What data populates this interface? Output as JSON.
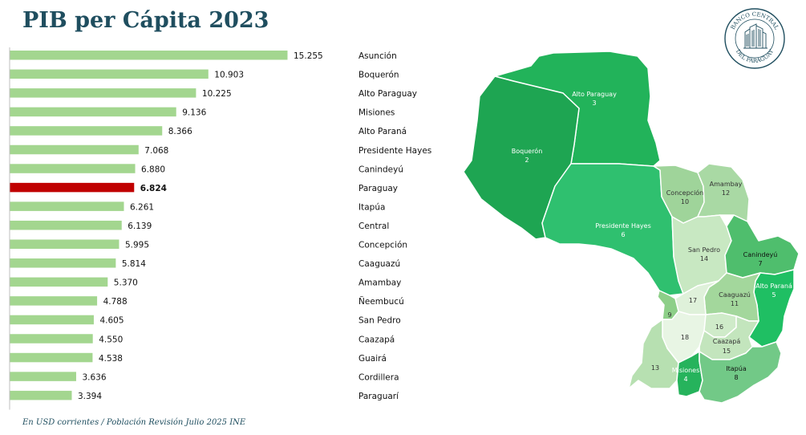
{
  "title": "PIB per Cápita 2023",
  "footnote": "En USD corrientes / Población Revisión Julio 2025 INE",
  "logo": {
    "text": "BANCO CENTRAL DEL PARAGUAY"
  },
  "colors": {
    "bar": "#a3d68f",
    "highlight": "#c00000",
    "title": "#1f4e5f",
    "axis": "#bfbfbf"
  },
  "chart_data": {
    "type": "bar",
    "orientation": "horizontal",
    "title": "PIB per Cápita 2023",
    "highlight": "Paraguay",
    "categories": [
      "Asunción",
      "Boquerón",
      "Alto Paraguay",
      "Misiones",
      "Alto Paraná",
      "Presidente Hayes",
      "Canindeyú",
      "Paraguay",
      "Itapúa",
      "Central",
      "Concepción",
      "Caaguazú",
      "Amambay",
      "Ñeembucú",
      "San Pedro",
      "Caazapá",
      "Guairá",
      "Cordillera",
      "Paraguarí"
    ],
    "values": [
      15255,
      10903,
      10225,
      9136,
      8366,
      7068,
      6880,
      6824,
      6261,
      6139,
      5995,
      5814,
      5370,
      4788,
      4605,
      4550,
      4538,
      3636,
      3394
    ],
    "labels": [
      "15.255",
      "10.903",
      "10.225",
      "9.136",
      "8.366",
      "7.068",
      "6.880",
      "6.824",
      "6.261",
      "6.139",
      "5.995",
      "5.814",
      "5.370",
      "4.788",
      "4.605",
      "4.550",
      "4.538",
      "3.636",
      "3.394"
    ]
  },
  "map": {
    "regions": [
      {
        "name": "Alto Paraguay",
        "rank": "3",
        "color": "#22b35a",
        "text_color": "#ffffff"
      },
      {
        "name": "Boquerón",
        "rank": "2",
        "color": "#1ea552",
        "text_color": "#ffffff"
      },
      {
        "name": "Presidente Hayes",
        "rank": "6",
        "color": "#2fc06f",
        "text_color": "#ffffff"
      },
      {
        "name": "Concepción",
        "rank": "10",
        "color": "#9fd49a",
        "text_color": "#333333"
      },
      {
        "name": "Amambay",
        "rank": "12",
        "color": "#a9d9a4",
        "text_color": "#333333"
      },
      {
        "name": "San Pedro",
        "rank": "14",
        "color": "#c8e8c2",
        "text_color": "#333333"
      },
      {
        "name": "Canindeyú",
        "rank": "7",
        "color": "#4fbe6d",
        "text_color": "#111111"
      },
      {
        "name": "Alto Paraná",
        "rank": "5",
        "color": "#1fbf63",
        "text_color": "#ffffff"
      },
      {
        "name": "Caaguazú",
        "rank": "11",
        "color": "#a3d79c",
        "text_color": "#333333"
      },
      {
        "name": "",
        "rank": "17",
        "color": "#dff1da",
        "text_color": "#333333"
      },
      {
        "name": "",
        "rank": "9",
        "color": "#8dcf88",
        "text_color": "#333333"
      },
      {
        "name": "",
        "rank": "18",
        "color": "#e8f5e4",
        "text_color": "#333333"
      },
      {
        "name": "",
        "rank": "16",
        "color": "#cfebc9",
        "text_color": "#333333"
      },
      {
        "name": "Caazapá",
        "rank": "15",
        "color": "#c3e5bd",
        "text_color": "#333333"
      },
      {
        "name": "",
        "rank": "13",
        "color": "#b7e0b1",
        "text_color": "#333333"
      },
      {
        "name": "Misiones",
        "rank": "4",
        "color": "#26b35c",
        "text_color": "#ffffff"
      },
      {
        "name": "Itapúa",
        "rank": "8",
        "color": "#72c987",
        "text_color": "#111111"
      }
    ]
  }
}
